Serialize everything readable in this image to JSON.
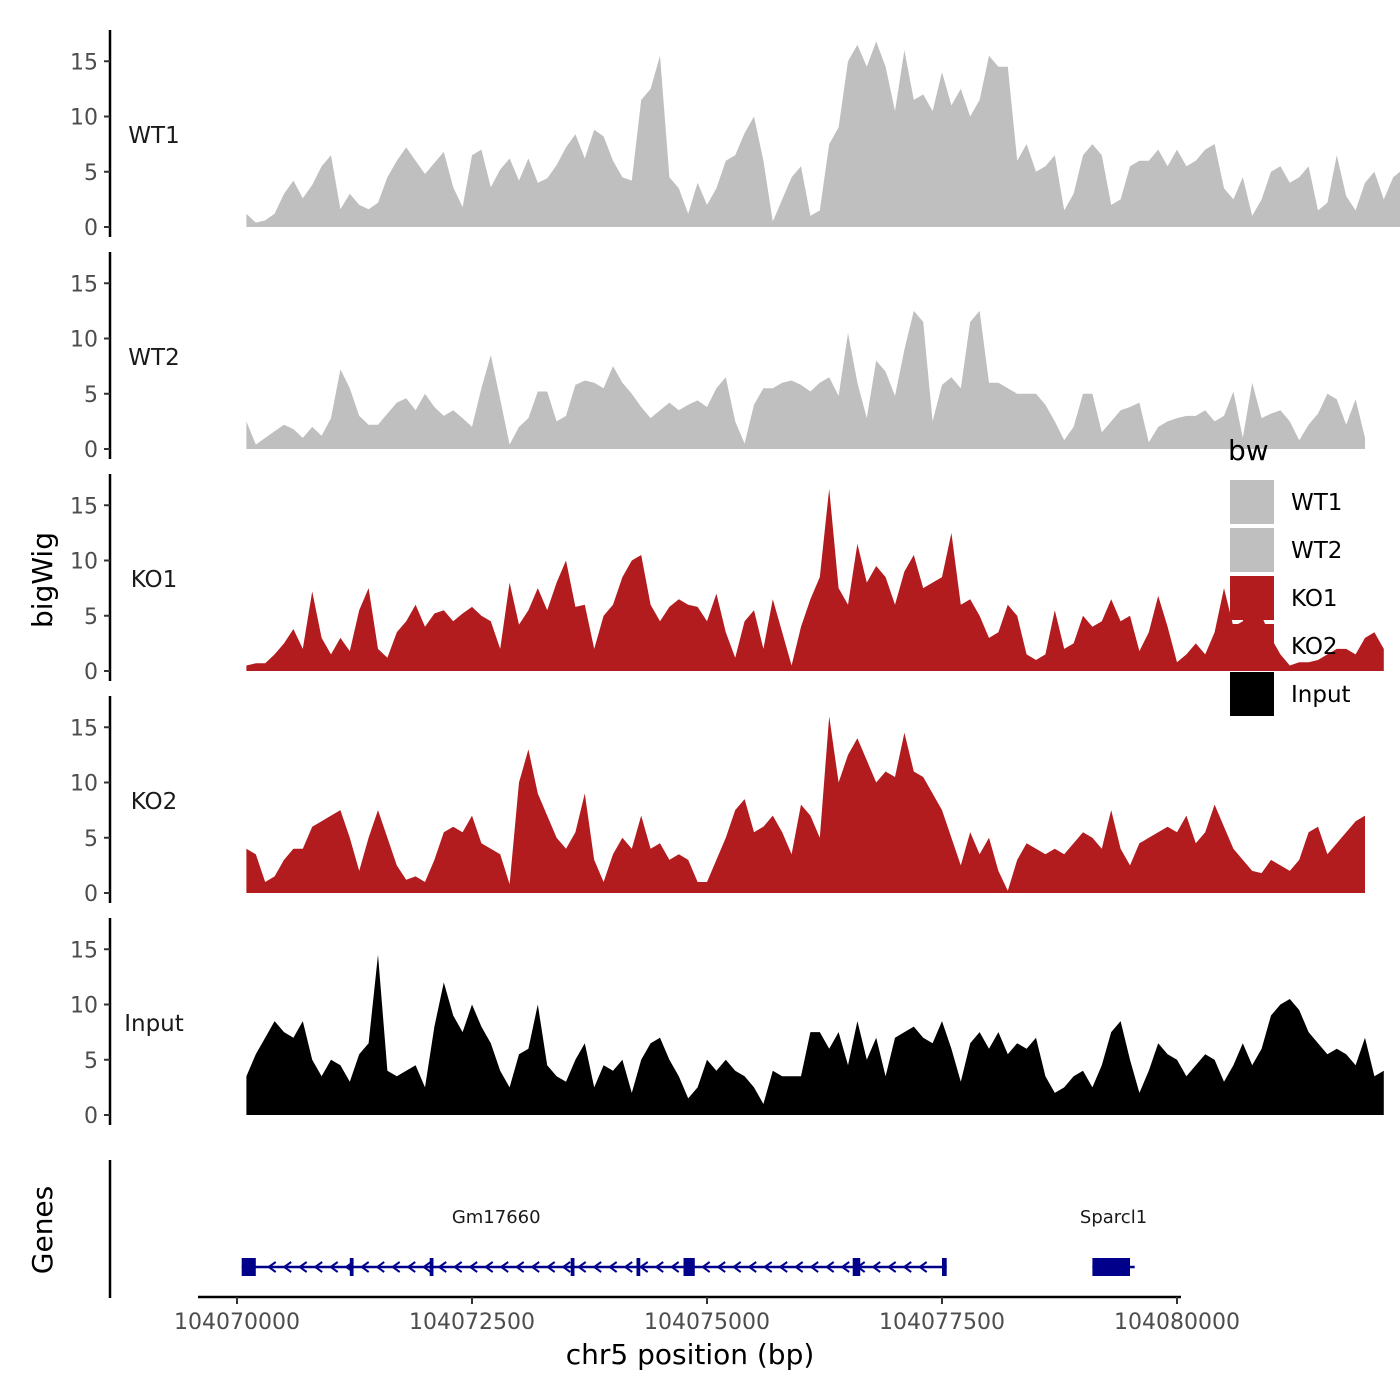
{
  "chart_data": {
    "type": "area",
    "xlabel": "chr5 position (bp)",
    "ylabel": "bigWig",
    "genes_label": "Genes",
    "x_range": [
      104070000,
      104079500
    ],
    "x_ticks": [
      {
        "value": 104070000,
        "label": "104070000"
      },
      {
        "value": 104072500,
        "label": "104072500"
      },
      {
        "value": 104075000,
        "label": "104075000"
      },
      {
        "value": 104077500,
        "label": "104077500"
      },
      {
        "value": 104080000,
        "label": "104080000"
      }
    ],
    "y_range": [
      0,
      17.5
    ],
    "y_ticks": [
      {
        "value": 0,
        "label": "0"
      },
      {
        "value": 5,
        "label": "5"
      },
      {
        "value": 10,
        "label": "10"
      },
      {
        "value": 15,
        "label": "15"
      }
    ],
    "grid": false,
    "legend_placement": "right",
    "legend": {
      "title": "bw",
      "items": [
        {
          "label": "WT1",
          "color": "#bfbfbf"
        },
        {
          "label": "WT2",
          "color": "#bfbfbf"
        },
        {
          "label": "KO1",
          "color": "#b21c1f"
        },
        {
          "label": "KO2",
          "color": "#b21c1f"
        },
        {
          "label": "Input",
          "color": "#000000"
        }
      ]
    },
    "series": [
      {
        "name": "WT1",
        "color": "#bfbfbf",
        "x_start": 104070100,
        "x_step": 100,
        "values": [
          1.2,
          0.4,
          0.6,
          1.2,
          3.0,
          4.2,
          2.6,
          3.8,
          5.5,
          6.5,
          1.6,
          3.0,
          2.0,
          1.6,
          2.2,
          4.5,
          6.0,
          7.2,
          6.0,
          4.8,
          5.8,
          6.8,
          3.6,
          1.8,
          6.5,
          7.0,
          3.6,
          5.2,
          6.2,
          4.2,
          6.2,
          4.0,
          4.4,
          5.6,
          7.2,
          8.4,
          6.2,
          8.8,
          8.2,
          6.0,
          4.5,
          4.2,
          11.5,
          12.5,
          15.5,
          4.5,
          3.5,
          1.2,
          4.0,
          2.0,
          3.5,
          6.0,
          6.5,
          8.5,
          10.0,
          6.0,
          0.5,
          2.5,
          4.5,
          5.5,
          1.0,
          1.5,
          7.5,
          9.0,
          15.0,
          16.5,
          14.5,
          16.8,
          14.5,
          10.5,
          16.0,
          11.5,
          12.0,
          10.5,
          14.0,
          11.0,
          12.5,
          10.0,
          11.5,
          15.5,
          14.5,
          14.5,
          6.0,
          7.5,
          5.0,
          5.5,
          6.5,
          1.5,
          3.0,
          6.5,
          7.5,
          6.5,
          2.0,
          2.5,
          5.5,
          6.0,
          6.0,
          7.0,
          5.5,
          7.0,
          5.5,
          6.0,
          7.0,
          7.5,
          3.5,
          2.5,
          4.5,
          1.0,
          2.5,
          5.0,
          5.5,
          4.0,
          4.5,
          5.5,
          1.5,
          2.2,
          6.5,
          2.8,
          1.5,
          4.0,
          5.0,
          2.5,
          4.5,
          5.2
        ]
      },
      {
        "name": "WT2",
        "color": "#bfbfbf",
        "x_start": 104070100,
        "x_step": 100,
        "values": [
          2.5,
          0.4,
          1.0,
          1.6,
          2.2,
          1.8,
          1.0,
          2.0,
          1.2,
          2.8,
          7.2,
          5.5,
          3.0,
          2.2,
          2.2,
          3.2,
          4.2,
          4.6,
          3.5,
          5.0,
          3.8,
          3.0,
          3.5,
          2.8,
          2.0,
          5.5,
          8.5,
          4.5,
          0.4,
          2.0,
          2.8,
          5.2,
          5.2,
          2.5,
          3.0,
          5.8,
          6.2,
          6.0,
          5.5,
          7.5,
          6.0,
          5.0,
          3.8,
          2.8,
          3.5,
          4.2,
          3.5,
          4.0,
          4.4,
          3.8,
          5.5,
          6.5,
          2.5,
          0.5,
          4.0,
          5.5,
          5.5,
          6.0,
          6.2,
          5.8,
          5.2,
          6.0,
          6.5,
          4.8,
          10.5,
          6.0,
          2.8,
          8.0,
          7.0,
          4.8,
          9.0,
          12.5,
          11.5,
          2.5,
          5.8,
          6.5,
          5.5,
          11.5,
          12.5,
          6.0,
          6.0,
          5.5,
          5.0,
          5.0,
          5.0,
          4.0,
          2.5,
          0.8,
          2.0,
          5.0,
          5.0,
          1.5,
          2.5,
          3.5,
          3.8,
          4.2,
          0.6,
          2.0,
          2.5,
          2.8,
          3.0,
          3.0,
          3.5,
          2.5,
          3.0,
          5.2,
          1.0,
          6.0,
          2.8,
          3.2,
          3.5,
          2.5,
          0.8,
          2.2,
          3.2,
          5.0,
          4.5,
          2.2,
          4.5,
          1.0
        ]
      },
      {
        "name": "KO1",
        "color": "#b21c1f",
        "x_start": 104070100,
        "x_step": 100,
        "values": [
          0.5,
          0.7,
          0.7,
          1.5,
          2.5,
          3.8,
          2.0,
          7.2,
          3.0,
          1.5,
          3.0,
          1.8,
          5.5,
          7.5,
          2.0,
          1.2,
          3.5,
          4.5,
          6.0,
          4.0,
          5.2,
          5.5,
          4.5,
          5.2,
          5.8,
          5.0,
          4.5,
          2.0,
          8.0,
          4.2,
          5.5,
          7.5,
          5.5,
          8.0,
          10.0,
          5.8,
          6.0,
          2.0,
          5.0,
          6.0,
          8.5,
          10.0,
          10.5,
          6.0,
          4.5,
          5.8,
          6.5,
          6.0,
          5.8,
          4.5,
          7.0,
          3.5,
          1.2,
          4.5,
          5.5,
          2.0,
          6.5,
          3.5,
          0.5,
          4.0,
          6.5,
          8.5,
          16.5,
          7.5,
          6.0,
          11.5,
          8.0,
          9.5,
          8.5,
          6.0,
          9.0,
          10.5,
          7.5,
          8.0,
          8.5,
          12.5,
          6.0,
          6.5,
          5.0,
          3.0,
          3.5,
          6.0,
          5.0,
          1.5,
          1.0,
          1.5,
          5.5,
          2.0,
          2.5,
          5.0,
          4.0,
          4.5,
          6.5,
          4.5,
          5.0,
          1.8,
          3.5,
          6.8,
          4.0,
          0.8,
          1.5,
          2.5,
          1.5,
          3.5,
          7.5,
          4.0,
          4.5,
          7.0,
          5.0,
          3.0,
          1.5,
          0.5,
          0.8,
          0.8,
          1.0,
          1.5,
          2.0,
          2.0,
          1.5,
          3.0,
          3.5,
          2.0
        ]
      },
      {
        "name": "KO2",
        "color": "#b21c1f",
        "x_start": 104070100,
        "x_step": 100,
        "values": [
          4.0,
          3.5,
          1.0,
          1.5,
          3.0,
          4.0,
          4.0,
          6.0,
          6.5,
          7.0,
          7.5,
          5.0,
          2.0,
          5.0,
          7.5,
          5.0,
          2.5,
          1.2,
          1.5,
          1.0,
          3.0,
          5.5,
          6.0,
          5.5,
          7.0,
          4.5,
          4.0,
          3.5,
          0.8,
          10.0,
          13.0,
          9.0,
          7.0,
          5.0,
          4.0,
          5.5,
          9.0,
          3.0,
          1.0,
          3.5,
          5.0,
          4.0,
          7.0,
          4.0,
          4.5,
          3.0,
          3.5,
          3.0,
          1.0,
          1.0,
          3.0,
          5.0,
          7.5,
          8.5,
          5.5,
          6.0,
          7.0,
          5.5,
          3.5,
          8.0,
          7.0,
          5.0,
          16.0,
          10.0,
          12.5,
          14.0,
          12.0,
          10.0,
          11.0,
          10.5,
          14.5,
          11.0,
          10.5,
          9.0,
          7.5,
          5.0,
          2.5,
          5.5,
          3.5,
          5.0,
          2.0,
          0.2,
          3.0,
          4.5,
          4.0,
          3.5,
          4.0,
          3.5,
          4.5,
          5.5,
          5.0,
          4.0,
          7.5,
          4.0,
          2.5,
          4.5,
          5.0,
          5.5,
          6.0,
          5.5,
          7.0,
          4.5,
          5.5,
          8.0,
          6.0,
          4.0,
          3.0,
          2.0,
          1.8,
          3.0,
          2.5,
          2.0,
          3.0,
          5.5,
          6.0,
          3.5,
          4.5,
          5.5,
          6.5,
          7.0
        ]
      },
      {
        "name": "Input",
        "color": "#000000",
        "x_start": 104070100,
        "x_step": 100,
        "values": [
          3.5,
          5.5,
          7.0,
          8.5,
          7.5,
          7.0,
          8.5,
          5.0,
          3.5,
          5.0,
          4.5,
          3.0,
          5.5,
          6.5,
          14.5,
          4.0,
          3.5,
          4.0,
          4.5,
          2.5,
          8.0,
          12.0,
          9.0,
          7.5,
          10.0,
          8.0,
          6.5,
          4.0,
          2.5,
          5.5,
          6.0,
          10.0,
          4.5,
          3.5,
          3.0,
          5.0,
          6.5,
          2.5,
          4.5,
          4.0,
          5.0,
          2.0,
          5.0,
          6.5,
          7.0,
          5.0,
          3.5,
          1.5,
          2.5,
          5.0,
          4.0,
          5.0,
          4.0,
          3.5,
          2.5,
          1.0,
          4.0,
          3.5,
          3.5,
          3.5,
          7.5,
          7.5,
          6.0,
          7.5,
          4.5,
          8.5,
          5.0,
          7.0,
          3.5,
          7.0,
          7.5,
          8.0,
          7.0,
          6.5,
          8.5,
          6.0,
          3.0,
          6.5,
          7.5,
          6.0,
          7.5,
          5.5,
          6.5,
          6.0,
          7.0,
          3.5,
          2.0,
          2.5,
          3.5,
          4.0,
          2.5,
          4.5,
          7.5,
          8.5,
          5.0,
          2.0,
          4.0,
          6.5,
          5.5,
          5.0,
          3.5,
          4.5,
          5.5,
          5.0,
          3.0,
          4.5,
          6.5,
          4.5,
          6.0,
          9.0,
          10.0,
          10.5,
          9.5,
          7.5,
          6.5,
          5.5,
          6.0,
          5.5,
          4.5,
          7.0,
          3.5,
          4.0
        ]
      }
    ],
    "genes": [
      {
        "name": "Gm17660",
        "start": 104070050,
        "end": 104077550,
        "strand": "-",
        "color": "#00008b",
        "exons": [
          [
            104070050,
            104070200
          ],
          [
            104071200,
            104071240
          ],
          [
            104072050,
            104072090
          ],
          [
            104073550,
            104073590
          ],
          [
            104074250,
            104074290
          ],
          [
            104074750,
            104074870
          ],
          [
            104076550,
            104076630
          ],
          [
            104077500,
            104077550
          ]
        ]
      },
      {
        "name": "Sparcl1",
        "start": 104079100,
        "end": 104079550,
        "strand": "-",
        "color": "#00008b",
        "exons": [
          [
            104079100,
            104079500
          ]
        ]
      }
    ]
  }
}
